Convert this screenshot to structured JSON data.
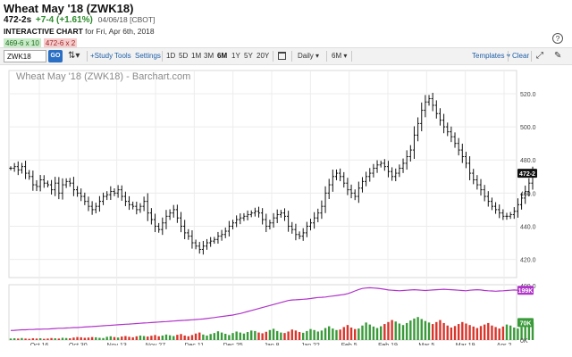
{
  "header": {
    "title": "Wheat May '18 (ZWK18)",
    "last": "472-2s",
    "change": "+7-4 (+1.61%)",
    "timestamp": "04/06/18 [CBOT]",
    "subtitle_bold": "INTERACTIVE CHART",
    "subtitle_rest": "for Fri, Apr 6th, 2018",
    "bid": "469-6 x 10",
    "ask": "472-6 x 2",
    "help_icon": "question-circle-icon",
    "colors": {
      "positive": "#2e8b2e",
      "bid_bg": "#c8ecc8",
      "ask_bg": "#f7cccc"
    }
  },
  "toolbar": {
    "symbol_value": "ZWK18",
    "go_label": "GO",
    "compare_icon": "compare-icon",
    "study_label": "+Study",
    "tools_label": "Tools",
    "settings_label": "Settings",
    "ranges": [
      "1D",
      "5D",
      "1M",
      "3M",
      "6M",
      "1Y",
      "5Y",
      "20Y"
    ],
    "active_range": "6M",
    "calendar_icon": "calendar-icon",
    "frequency": "Daily",
    "period": "6M",
    "templates_label": "Templates",
    "clear_label": "Clear",
    "expand_icon": "expand-icon",
    "draw_icon": "pencil-icon",
    "accent": "#1f5fa8"
  },
  "chart_data": {
    "type": "bar",
    "style": "ohlc",
    "title": "Wheat May '18 (ZWK18) - Barchart.com",
    "frequency": "Daily",
    "x_tick_labels": [
      "Oct 16",
      "Oct 30",
      "Nov 13",
      "Nov 27",
      "Dec 11",
      "Dec 25",
      "Jan 8",
      "Jan 22",
      "Feb 5",
      "Feb 19",
      "Mar 5",
      "Mar 19",
      "Apr 2"
    ],
    "y_tick_labels": [
      "420.0",
      "440.0",
      "460.0",
      "480.0",
      "500.0",
      "520.0"
    ],
    "ylim": [
      409,
      534
    ],
    "grid": true,
    "last_value_label": "472-2",
    "close_series": [
      475,
      476,
      474,
      476,
      472,
      470,
      465,
      464,
      468,
      466,
      465,
      462,
      466,
      460,
      465,
      467,
      466,
      462,
      460,
      458,
      455,
      452,
      450,
      452,
      455,
      458,
      459,
      461,
      460,
      462,
      458,
      455,
      453,
      452,
      450,
      452,
      455,
      448,
      444,
      440,
      438,
      442,
      446,
      448,
      450,
      445,
      440,
      436,
      434,
      430,
      428,
      426,
      428,
      430,
      431,
      432,
      434,
      435,
      437,
      440,
      442,
      444,
      445,
      446,
      447,
      448,
      449,
      448,
      444,
      440,
      442,
      445,
      447,
      448,
      446,
      440,
      438,
      435,
      434,
      436,
      440,
      442,
      445,
      448,
      452,
      460,
      465,
      470,
      472,
      470,
      466,
      462,
      460,
      458,
      463,
      467,
      470,
      472,
      475,
      477,
      478,
      476,
      473,
      470,
      472,
      475,
      478,
      482,
      486,
      495,
      502,
      510,
      515,
      517,
      513,
      508,
      504,
      500,
      497,
      494,
      490,
      486,
      482,
      478,
      472,
      468,
      465,
      462,
      458,
      455,
      452,
      450,
      448,
      446,
      446,
      447,
      449,
      453,
      457,
      461,
      466,
      472
    ],
    "indicator_panel": {
      "y_tick_labels": [
        "400.0",
        "199K",
        "70K",
        "0K"
      ],
      "open_interest_label": "199K",
      "volume_label": "70K",
      "open_interest": [
        38,
        39,
        40,
        41,
        41,
        42,
        42,
        43,
        43,
        44,
        44,
        45,
        46,
        47,
        47,
        48,
        49,
        50,
        50,
        51,
        52,
        53,
        54,
        55,
        56,
        57,
        58,
        59,
        60,
        61,
        62,
        63,
        64,
        65,
        66,
        67,
        68,
        69,
        70,
        71,
        72,
        73,
        74,
        75,
        76,
        77,
        78,
        79,
        80,
        81,
        82,
        83,
        84,
        86,
        88,
        90,
        92,
        94,
        96,
        98,
        100,
        103,
        106,
        110,
        114,
        118,
        122,
        126,
        130,
        134,
        138,
        142,
        146,
        150,
        154,
        158,
        160,
        161,
        162,
        163,
        164,
        166,
        168,
        170,
        171,
        172,
        174,
        176,
        178,
        180,
        182,
        185,
        190,
        196,
        202,
        206,
        208,
        209,
        208,
        207,
        205,
        203,
        200,
        199,
        198,
        197,
        198,
        199,
        200,
        201,
        200,
        199,
        198,
        199,
        200,
        201,
        202,
        203,
        202,
        201,
        200,
        199,
        198,
        197,
        199,
        200,
        201,
        200,
        198,
        197,
        196,
        195,
        196,
        197,
        198,
        199,
        200,
        199,
        197,
        195,
        196,
        199
      ],
      "volume": [
        6,
        7,
        6,
        8,
        6,
        5,
        7,
        6,
        7,
        5,
        6,
        8,
        7,
        6,
        9,
        8,
        7,
        10,
        12,
        11,
        9,
        10,
        12,
        11,
        9,
        8,
        13,
        15,
        12,
        10,
        14,
        16,
        13,
        11,
        15,
        18,
        16,
        14,
        17,
        20,
        15,
        18,
        22,
        19,
        16,
        21,
        24,
        18,
        15,
        20,
        26,
        30,
        22,
        18,
        24,
        28,
        35,
        30,
        25,
        20,
        28,
        34,
        30,
        26,
        32,
        38,
        36,
        30,
        27,
        33,
        40,
        45,
        36,
        30,
        28,
        34,
        42,
        38,
        32,
        29,
        36,
        44,
        40,
        34,
        38,
        48,
        55,
        46,
        40,
        42,
        52,
        60,
        50,
        44,
        46,
        58,
        70,
        62,
        54,
        48,
        55,
        64,
        72,
        80,
        74,
        66,
        60,
        68,
        78,
        86,
        92,
        84,
        76,
        70,
        64,
        72,
        80,
        68,
        58,
        50,
        56,
        64,
        72,
        66,
        60,
        54,
        48,
        56,
        62,
        68,
        58,
        52,
        46,
        54,
        62,
        58,
        50,
        46,
        52,
        60,
        66,
        70
      ],
      "colors": {
        "open_interest": "#b034c9",
        "volume_up": "#3a9a3a",
        "volume_down": "#d9352b"
      }
    }
  }
}
